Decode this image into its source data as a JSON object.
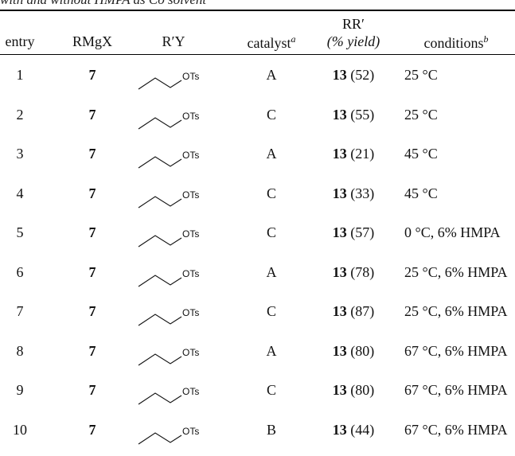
{
  "caption": "with and without HMPA as Co solvent",
  "headers": {
    "entry": "entry",
    "rmgx": "RMgX",
    "ry": "R′Y",
    "catalyst": "catalyst",
    "catalyst_note": "a",
    "rr_line1": "RR′",
    "rr_line2": "(% yield)",
    "conditions": "conditions",
    "conditions_note": "b"
  },
  "rows": [
    {
      "entry": "1",
      "rmgx": "7",
      "ry": "OTs",
      "catalyst": "A",
      "product": "13",
      "yield": "(52)",
      "conditions": "25 °C"
    },
    {
      "entry": "2",
      "rmgx": "7",
      "ry": "OTs",
      "catalyst": "C",
      "product": "13",
      "yield": "(55)",
      "conditions": "25 °C"
    },
    {
      "entry": "3",
      "rmgx": "7",
      "ry": "OTs",
      "catalyst": "A",
      "product": "13",
      "yield": "(21)",
      "conditions": "45 °C"
    },
    {
      "entry": "4",
      "rmgx": "7",
      "ry": "OTs",
      "catalyst": "C",
      "product": "13",
      "yield": "(33)",
      "conditions": "45 °C"
    },
    {
      "entry": "5",
      "rmgx": "7",
      "ry": "OTs",
      "catalyst": "C",
      "product": "13",
      "yield": "(57)",
      "conditions": "0 °C, 6% HMPA"
    },
    {
      "entry": "6",
      "rmgx": "7",
      "ry": "OTs",
      "catalyst": "A",
      "product": "13",
      "yield": "(78)",
      "conditions": "25 °C, 6% HMPA"
    },
    {
      "entry": "7",
      "rmgx": "7",
      "ry": "OTs",
      "catalyst": "C",
      "product": "13",
      "yield": "(87)",
      "conditions": "25 °C, 6% HMPA"
    },
    {
      "entry": "8",
      "rmgx": "7",
      "ry": "OTs",
      "catalyst": "A",
      "product": "13",
      "yield": "(80)",
      "conditions": "67 °C, 6% HMPA"
    },
    {
      "entry": "9",
      "rmgx": "7",
      "ry": "OTs",
      "catalyst": "C",
      "product": "13",
      "yield": "(80)",
      "conditions": "67 °C, 6% HMPA"
    },
    {
      "entry": "10",
      "rmgx": "7",
      "ry": "OTs",
      "catalyst": "B",
      "product": "13",
      "yield": "(44)",
      "conditions": "67 °C, 6% HMPA"
    }
  ]
}
